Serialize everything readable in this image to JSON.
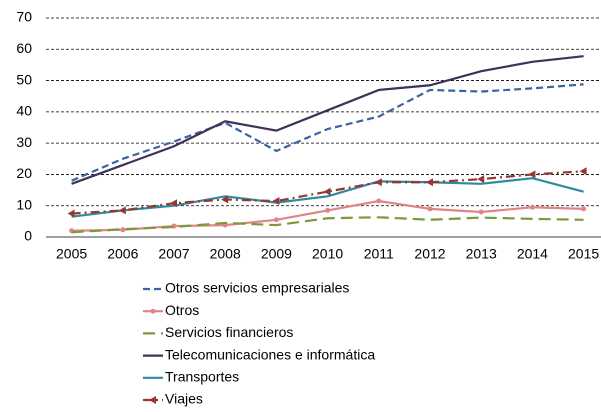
{
  "chart_data": {
    "type": "line",
    "categories": [
      "2005",
      "2006",
      "2007",
      "2008",
      "2009",
      "2010",
      "2011",
      "2012",
      "2013",
      "2014",
      "2015"
    ],
    "series": [
      {
        "name": "Otros servicios empresariales",
        "color": "#3a63a0",
        "dash": "dashed",
        "values": [
          18,
          25,
          30.5,
          36.5,
          27.5,
          34.5,
          38.5,
          47,
          46.5,
          47.5,
          48.8
        ]
      },
      {
        "name": "Otros",
        "color": "#e08585",
        "marker": "circle",
        "values": [
          2,
          2.3,
          3.5,
          3.8,
          5.5,
          8.5,
          11.5,
          9,
          8,
          9.5,
          9
        ]
      },
      {
        "name": "Servicios financieros",
        "color": "#7a9a3c",
        "dash": "long-dash",
        "values": [
          1.5,
          2.5,
          3.2,
          4.5,
          3.8,
          6,
          6.3,
          5.5,
          6.2,
          5.8,
          5.5
        ]
      },
      {
        "name": "Telecomunicaciones e informática",
        "color": "#40305a",
        "values": [
          17,
          23,
          29,
          37,
          34,
          40.5,
          47,
          48.5,
          53,
          56,
          57.8
        ]
      },
      {
        "name": "Transportes",
        "color": "#2f8aa0",
        "values": [
          6.5,
          8.5,
          10,
          13,
          11,
          13,
          17.8,
          17.5,
          17,
          18.8,
          14.5
        ]
      },
      {
        "name": "Viajes",
        "color": "#953735",
        "dash": "dash-dot",
        "marker": "triangle",
        "values": [
          7.5,
          8.5,
          10.8,
          12,
          11.5,
          14.5,
          17.5,
          17.5,
          18.5,
          20,
          21
        ]
      }
    ],
    "ylim": [
      0,
      70
    ],
    "yticks": [
      0,
      10,
      20,
      30,
      40,
      50,
      60,
      70
    ],
    "grid": true
  }
}
